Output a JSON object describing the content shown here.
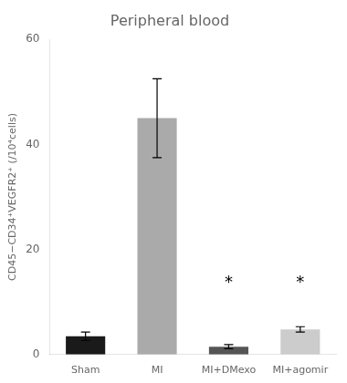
{
  "chart_data": {
    "type": "bar",
    "title": "Peripheral blood",
    "categories": [
      "Sham",
      "MI",
      "MI+DMexo",
      "MI+agomir"
    ],
    "values": [
      3.5,
      45.0,
      1.5,
      4.8
    ],
    "errors": [
      0.8,
      7.5,
      0.4,
      0.5
    ],
    "colors": [
      "#1a1a1a",
      "#aaaaaa",
      "#555555",
      "#cccccc"
    ],
    "ylabel": "CD45−CD34⁺VEGFR2⁺ (/10⁴cells)",
    "ylim": [
      0,
      60
    ],
    "yticks": [
      0,
      20,
      40,
      60
    ],
    "grid": false,
    "annotations": [
      {
        "text": "*",
        "x": "MI+DMexo",
        "y": 12
      },
      {
        "text": "*",
        "x": "MI+agomir",
        "y": 12
      }
    ]
  }
}
